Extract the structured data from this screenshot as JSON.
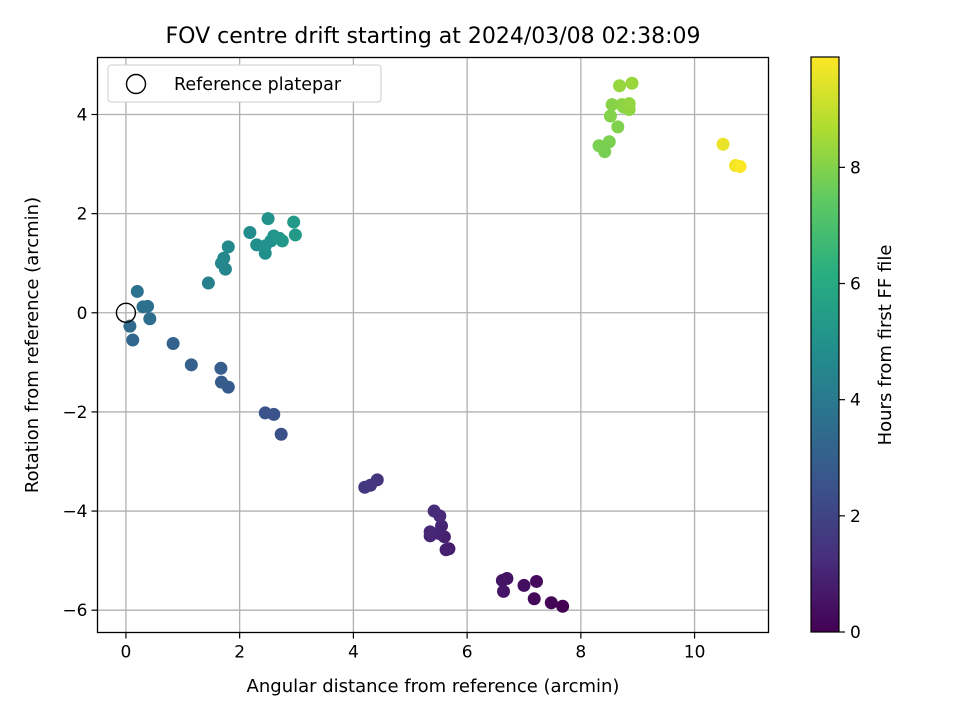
{
  "chart_data": {
    "type": "scatter",
    "title": "FOV centre drift starting at 2024/03/08 02:38:09",
    "xlabel": "Angular distance from reference (arcmin)",
    "ylabel": "Rotation from reference (arcmin)",
    "xlim": [
      -0.5,
      11.3
    ],
    "ylim": [
      -6.45,
      5.15
    ],
    "xticks": [
      0,
      2,
      4,
      6,
      8,
      10
    ],
    "yticks": [
      -6,
      -4,
      -2,
      0,
      2,
      4
    ],
    "grid": true,
    "legend": {
      "placement": "top-left",
      "entries": [
        "Reference platepar"
      ]
    },
    "reference_point": {
      "x": 0,
      "y": 0
    },
    "colorbar": {
      "label": "Hours from first FF file",
      "range": [
        0,
        9.9
      ],
      "ticks": [
        0,
        2,
        4,
        6,
        8
      ],
      "colormap": "viridis"
    },
    "points": [
      {
        "x": 7.68,
        "y": -5.92,
        "hours": 0.0
      },
      {
        "x": 7.48,
        "y": -5.85,
        "hours": 0.1
      },
      {
        "x": 7.18,
        "y": -5.77,
        "hours": 0.2
      },
      {
        "x": 7.22,
        "y": -5.42,
        "hours": 0.3
      },
      {
        "x": 7.0,
        "y": -5.5,
        "hours": 0.4
      },
      {
        "x": 6.7,
        "y": -5.36,
        "hours": 0.5
      },
      {
        "x": 6.62,
        "y": -5.4,
        "hours": 0.55
      },
      {
        "x": 6.64,
        "y": -5.62,
        "hours": 0.6
      },
      {
        "x": 5.68,
        "y": -4.76,
        "hours": 0.8
      },
      {
        "x": 5.63,
        "y": -4.78,
        "hours": 0.85
      },
      {
        "x": 5.6,
        "y": -4.52,
        "hours": 0.9
      },
      {
        "x": 5.5,
        "y": -4.45,
        "hours": 0.95
      },
      {
        "x": 5.55,
        "y": -4.3,
        "hours": 1.0
      },
      {
        "x": 5.35,
        "y": -4.5,
        "hours": 1.05
      },
      {
        "x": 5.35,
        "y": -4.42,
        "hours": 1.1
      },
      {
        "x": 5.52,
        "y": -4.1,
        "hours": 1.15
      },
      {
        "x": 5.42,
        "y": -4.0,
        "hours": 1.2
      },
      {
        "x": 4.42,
        "y": -3.37,
        "hours": 1.5
      },
      {
        "x": 4.3,
        "y": -3.48,
        "hours": 1.55
      },
      {
        "x": 4.2,
        "y": -3.52,
        "hours": 1.6
      },
      {
        "x": 2.73,
        "y": -2.45,
        "hours": 2.4
      },
      {
        "x": 2.6,
        "y": -2.05,
        "hours": 2.5
      },
      {
        "x": 2.45,
        "y": -2.02,
        "hours": 2.55
      },
      {
        "x": 1.8,
        "y": -1.5,
        "hours": 2.8
      },
      {
        "x": 1.68,
        "y": -1.4,
        "hours": 2.85
      },
      {
        "x": 1.67,
        "y": -1.12,
        "hours": 2.9
      },
      {
        "x": 1.15,
        "y": -1.05,
        "hours": 3.0
      },
      {
        "x": 0.83,
        "y": -0.62,
        "hours": 3.1
      },
      {
        "x": 0.12,
        "y": -0.55,
        "hours": 3.3
      },
      {
        "x": 0.07,
        "y": -0.27,
        "hours": 3.4
      },
      {
        "x": 0.42,
        "y": -0.12,
        "hours": 3.5
      },
      {
        "x": 0.3,
        "y": 0.12,
        "hours": 3.6
      },
      {
        "x": 0.38,
        "y": 0.13,
        "hours": 3.65
      },
      {
        "x": 0.2,
        "y": 0.43,
        "hours": 3.7
      },
      {
        "x": 1.45,
        "y": 0.6,
        "hours": 4.3
      },
      {
        "x": 1.75,
        "y": 0.88,
        "hours": 4.5
      },
      {
        "x": 1.68,
        "y": 1.0,
        "hours": 4.55
      },
      {
        "x": 1.72,
        "y": 1.1,
        "hours": 4.6
      },
      {
        "x": 1.8,
        "y": 1.33,
        "hours": 4.65
      },
      {
        "x": 2.18,
        "y": 1.62,
        "hours": 4.8
      },
      {
        "x": 2.3,
        "y": 1.37,
        "hours": 4.85
      },
      {
        "x": 2.45,
        "y": 1.2,
        "hours": 4.9
      },
      {
        "x": 2.45,
        "y": 1.35,
        "hours": 4.95
      },
      {
        "x": 2.55,
        "y": 1.45,
        "hours": 5.0
      },
      {
        "x": 2.5,
        "y": 1.9,
        "hours": 5.05
      },
      {
        "x": 2.6,
        "y": 1.55,
        "hours": 5.1
      },
      {
        "x": 2.7,
        "y": 1.5,
        "hours": 5.15
      },
      {
        "x": 2.75,
        "y": 1.45,
        "hours": 5.2
      },
      {
        "x": 2.95,
        "y": 1.83,
        "hours": 5.3
      },
      {
        "x": 2.98,
        "y": 1.57,
        "hours": 5.35
      },
      {
        "x": 8.42,
        "y": 3.25,
        "hours": 7.8
      },
      {
        "x": 8.32,
        "y": 3.37,
        "hours": 7.85
      },
      {
        "x": 8.5,
        "y": 3.45,
        "hours": 7.9
      },
      {
        "x": 8.65,
        "y": 3.75,
        "hours": 7.95
      },
      {
        "x": 8.52,
        "y": 3.97,
        "hours": 8.0
      },
      {
        "x": 8.55,
        "y": 4.2,
        "hours": 8.05
      },
      {
        "x": 8.75,
        "y": 4.15,
        "hours": 8.1
      },
      {
        "x": 8.72,
        "y": 4.2,
        "hours": 8.15
      },
      {
        "x": 8.85,
        "y": 4.1,
        "hours": 8.2
      },
      {
        "x": 8.85,
        "y": 4.22,
        "hours": 8.25
      },
      {
        "x": 8.68,
        "y": 4.58,
        "hours": 8.3
      },
      {
        "x": 8.9,
        "y": 4.63,
        "hours": 8.35
      },
      {
        "x": 10.5,
        "y": 3.4,
        "hours": 9.6
      },
      {
        "x": 10.72,
        "y": 2.97,
        "hours": 9.75
      },
      {
        "x": 10.8,
        "y": 2.95,
        "hours": 9.85
      }
    ]
  }
}
